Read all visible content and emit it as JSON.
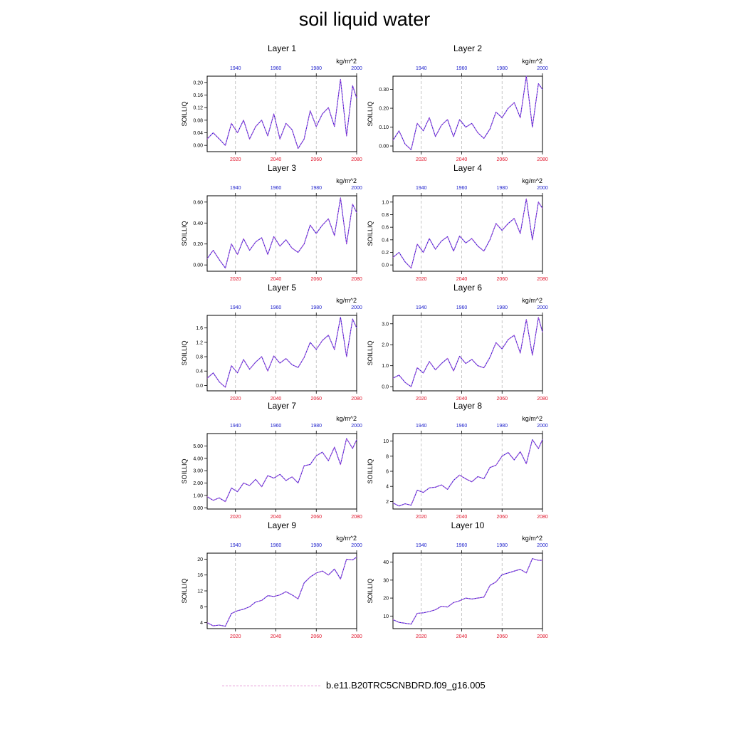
{
  "title": "soil liquid water",
  "legend": {
    "label": "b.e11.B20TRC5CNBDRD.f09_g16.005",
    "color": "#e79ad7"
  },
  "colors": {
    "series": "#3a1ed6",
    "series_overlay": "#e86ad0",
    "top_axis": "#1f22cc",
    "bottom_axis": "#e0142a",
    "grid": "#b8b8b8"
  },
  "chart_data": [
    {
      "type": "line",
      "title": "Layer 1",
      "ylabel": "SOILLIQ",
      "units": "kg/m^2",
      "ylim": [
        -0.02,
        0.22
      ],
      "yticks": [
        "0.00",
        "0.04",
        "0.08",
        "0.12",
        "0.16",
        "0.20"
      ],
      "x_bottom_range": [
        2006,
        2080
      ],
      "x_bottom_ticks": [
        "2020",
        "2040",
        "2060",
        "2080"
      ],
      "x_top_ticks": [
        "1940",
        "1960",
        "1980",
        "2000"
      ],
      "x": [
        2006,
        2009,
        2012,
        2015,
        2018,
        2021,
        2024,
        2027,
        2030,
        2033,
        2036,
        2039,
        2042,
        2045,
        2048,
        2051,
        2054,
        2057,
        2060,
        2063,
        2066,
        2069,
        2072,
        2075,
        2078,
        2080
      ],
      "y": [
        0.02,
        0.04,
        0.02,
        0.0,
        0.07,
        0.04,
        0.08,
        0.02,
        0.06,
        0.08,
        0.03,
        0.1,
        0.02,
        0.07,
        0.05,
        -0.01,
        0.02,
        0.11,
        0.06,
        0.1,
        0.12,
        0.06,
        0.21,
        0.03,
        0.19,
        0.15
      ]
    },
    {
      "type": "line",
      "title": "Layer 2",
      "ylabel": "SOILLIQ",
      "units": "kg/m^2",
      "ylim": [
        -0.03,
        0.37
      ],
      "yticks": [
        "0.00",
        "0.10",
        "0.20",
        "0.30"
      ],
      "x_bottom_range": [
        2006,
        2080
      ],
      "x_bottom_ticks": [
        "2020",
        "2040",
        "2060",
        "2080"
      ],
      "x_top_ticks": [
        "1940",
        "1960",
        "1980",
        "2000"
      ],
      "x": [
        2006,
        2009,
        2012,
        2015,
        2018,
        2021,
        2024,
        2027,
        2030,
        2033,
        2036,
        2039,
        2042,
        2045,
        2048,
        2051,
        2054,
        2057,
        2060,
        2063,
        2066,
        2069,
        2072,
        2075,
        2078,
        2080
      ],
      "y": [
        0.03,
        0.08,
        0.01,
        -0.02,
        0.12,
        0.08,
        0.15,
        0.05,
        0.11,
        0.14,
        0.05,
        0.14,
        0.1,
        0.12,
        0.07,
        0.04,
        0.09,
        0.18,
        0.15,
        0.2,
        0.23,
        0.15,
        0.37,
        0.1,
        0.33,
        0.3
      ]
    },
    {
      "type": "line",
      "title": "Layer 3",
      "ylabel": "SOILLIQ",
      "units": "kg/m^2",
      "ylim": [
        -0.06,
        0.66
      ],
      "yticks": [
        "0.00",
        "0.20",
        "0.40",
        "0.60"
      ],
      "x_bottom_range": [
        2006,
        2080
      ],
      "x_bottom_ticks": [
        "2020",
        "2040",
        "2060",
        "2080"
      ],
      "x_top_ticks": [
        "1940",
        "1960",
        "1980",
        "2000"
      ],
      "x": [
        2006,
        2009,
        2012,
        2015,
        2018,
        2021,
        2024,
        2027,
        2030,
        2033,
        2036,
        2039,
        2042,
        2045,
        2048,
        2051,
        2054,
        2057,
        2060,
        2063,
        2066,
        2069,
        2072,
        2075,
        2078,
        2080
      ],
      "y": [
        0.06,
        0.14,
        0.05,
        -0.03,
        0.2,
        0.1,
        0.25,
        0.14,
        0.22,
        0.26,
        0.1,
        0.27,
        0.18,
        0.24,
        0.16,
        0.12,
        0.2,
        0.38,
        0.3,
        0.38,
        0.44,
        0.28,
        0.64,
        0.2,
        0.58,
        0.5
      ]
    },
    {
      "type": "line",
      "title": "Layer 4",
      "ylabel": "SOILLIQ",
      "units": "kg/m^2",
      "ylim": [
        -0.1,
        1.1
      ],
      "yticks": [
        "0.0",
        "0.2",
        "0.4",
        "0.6",
        "0.8",
        "1.0"
      ],
      "x_bottom_range": [
        2006,
        2080
      ],
      "x_bottom_ticks": [
        "2020",
        "2040",
        "2060",
        "2080"
      ],
      "x_top_ticks": [
        "1940",
        "1960",
        "1980",
        "2000"
      ],
      "x": [
        2006,
        2009,
        2012,
        2015,
        2018,
        2021,
        2024,
        2027,
        2030,
        2033,
        2036,
        2039,
        2042,
        2045,
        2048,
        2051,
        2054,
        2057,
        2060,
        2063,
        2066,
        2069,
        2072,
        2075,
        2078,
        2080
      ],
      "y": [
        0.12,
        0.2,
        0.05,
        -0.05,
        0.33,
        0.2,
        0.42,
        0.25,
        0.38,
        0.45,
        0.22,
        0.46,
        0.35,
        0.42,
        0.3,
        0.22,
        0.4,
        0.66,
        0.55,
        0.66,
        0.74,
        0.5,
        1.05,
        0.4,
        1.0,
        0.9
      ]
    },
    {
      "type": "line",
      "title": "Layer 5",
      "ylabel": "SOILLIQ",
      "units": "kg/m^2",
      "ylim": [
        -0.15,
        1.95
      ],
      "yticks": [
        "0.0",
        "0.4",
        "0.8",
        "1.2",
        "1.6"
      ],
      "x_bottom_range": [
        2006,
        2080
      ],
      "x_bottom_ticks": [
        "2020",
        "2040",
        "2060",
        "2080"
      ],
      "x_top_ticks": [
        "1940",
        "1960",
        "1980",
        "2000"
      ],
      "x": [
        2006,
        2009,
        2012,
        2015,
        2018,
        2021,
        2024,
        2027,
        2030,
        2033,
        2036,
        2039,
        2042,
        2045,
        2048,
        2051,
        2054,
        2057,
        2060,
        2063,
        2066,
        2069,
        2072,
        2075,
        2078,
        2080
      ],
      "y": [
        0.2,
        0.35,
        0.1,
        -0.05,
        0.55,
        0.35,
        0.72,
        0.45,
        0.65,
        0.8,
        0.4,
        0.82,
        0.62,
        0.75,
        0.58,
        0.5,
        0.78,
        1.2,
        1.0,
        1.25,
        1.4,
        1.0,
        1.9,
        0.8,
        1.85,
        1.6
      ]
    },
    {
      "type": "line",
      "title": "Layer 6",
      "ylabel": "SOILLIQ",
      "units": "kg/m^2",
      "ylim": [
        -0.2,
        3.4
      ],
      "yticks": [
        "0.0",
        "1.0",
        "2.0",
        "3.0"
      ],
      "x_bottom_range": [
        2006,
        2080
      ],
      "x_bottom_ticks": [
        "2020",
        "2040",
        "2060",
        "2080"
      ],
      "x_top_ticks": [
        "1940",
        "1960",
        "1980",
        "2000"
      ],
      "x": [
        2006,
        2009,
        2012,
        2015,
        2018,
        2021,
        2024,
        2027,
        2030,
        2033,
        2036,
        2039,
        2042,
        2045,
        2048,
        2051,
        2054,
        2057,
        2060,
        2063,
        2066,
        2069,
        2072,
        2075,
        2078,
        2080
      ],
      "y": [
        0.4,
        0.55,
        0.2,
        0.0,
        0.9,
        0.65,
        1.2,
        0.8,
        1.1,
        1.35,
        0.75,
        1.45,
        1.1,
        1.3,
        1.0,
        0.9,
        1.4,
        2.1,
        1.8,
        2.25,
        2.45,
        1.6,
        3.2,
        1.5,
        3.3,
        2.6
      ]
    },
    {
      "type": "line",
      "title": "Layer 7",
      "ylabel": "SOILLIQ",
      "units": "kg/m^2",
      "ylim": [
        -0.1,
        6.0
      ],
      "yticks": [
        "0.00",
        "1.00",
        "2.00",
        "3.00",
        "4.00",
        "5.00"
      ],
      "x_bottom_range": [
        2006,
        2080
      ],
      "x_bottom_ticks": [
        "2020",
        "2040",
        "2060",
        "2080"
      ],
      "x_top_ticks": [
        "1940",
        "1960",
        "1980",
        "2000"
      ],
      "x": [
        2006,
        2009,
        2012,
        2015,
        2018,
        2021,
        2024,
        2027,
        2030,
        2033,
        2036,
        2039,
        2042,
        2045,
        2048,
        2051,
        2054,
        2057,
        2060,
        2063,
        2066,
        2069,
        2072,
        2075,
        2078,
        2080
      ],
      "y": [
        0.9,
        0.6,
        0.8,
        0.5,
        1.6,
        1.3,
        2.0,
        1.8,
        2.3,
        1.7,
        2.6,
        2.4,
        2.7,
        2.2,
        2.5,
        2.0,
        3.4,
        3.5,
        4.2,
        4.5,
        3.8,
        4.9,
        3.5,
        5.6,
        4.8,
        5.5
      ]
    },
    {
      "type": "line",
      "title": "Layer 8",
      "ylabel": "SOILLIQ",
      "units": "kg/m^2",
      "ylim": [
        1.0,
        11.0
      ],
      "yticks": [
        "2",
        "4",
        "6",
        "8",
        "10"
      ],
      "x_bottom_range": [
        2006,
        2080
      ],
      "x_bottom_ticks": [
        "2020",
        "2040",
        "2060",
        "2080"
      ],
      "x_top_ticks": [
        "1940",
        "1960",
        "1980",
        "2000"
      ],
      "x": [
        2006,
        2009,
        2012,
        2015,
        2018,
        2021,
        2024,
        2027,
        2030,
        2033,
        2036,
        2039,
        2042,
        2045,
        2048,
        2051,
        2054,
        2057,
        2060,
        2063,
        2066,
        2069,
        2072,
        2075,
        2078,
        2080
      ],
      "y": [
        1.8,
        1.4,
        1.7,
        1.5,
        3.5,
        3.2,
        3.8,
        3.9,
        4.2,
        3.6,
        4.8,
        5.5,
        5.0,
        4.6,
        5.3,
        5.0,
        6.5,
        6.8,
        8.0,
        8.5,
        7.5,
        8.6,
        7.0,
        10.2,
        9.0,
        10.2
      ]
    },
    {
      "type": "line",
      "title": "Layer 9",
      "ylabel": "SOILLIQ",
      "units": "kg/m^2",
      "ylim": [
        2.5,
        21.5
      ],
      "yticks": [
        "4",
        "8",
        "12",
        "16",
        "20"
      ],
      "x_bottom_range": [
        2006,
        2080
      ],
      "x_bottom_ticks": [
        "2020",
        "2040",
        "2060",
        "2080"
      ],
      "x_top_ticks": [
        "1940",
        "1960",
        "1980",
        "2000"
      ],
      "x": [
        2006,
        2009,
        2012,
        2015,
        2018,
        2021,
        2024,
        2027,
        2030,
        2033,
        2036,
        2039,
        2042,
        2045,
        2048,
        2051,
        2054,
        2057,
        2060,
        2063,
        2066,
        2069,
        2072,
        2075,
        2078,
        2080
      ],
      "y": [
        4.0,
        3.2,
        3.4,
        3.1,
        6.3,
        7.0,
        7.4,
        8.0,
        9.2,
        9.6,
        10.8,
        10.6,
        11.0,
        11.8,
        11.0,
        10.0,
        14.0,
        15.5,
        16.5,
        17.0,
        16.0,
        17.5,
        15.0,
        20.0,
        19.8,
        20.5
      ]
    },
    {
      "type": "line",
      "title": "Layer 10",
      "ylabel": "SOILLIQ",
      "units": "kg/m^2",
      "ylim": [
        3.0,
        45.0
      ],
      "yticks": [
        "10",
        "20",
        "30",
        "40"
      ],
      "x_bottom_range": [
        2006,
        2080
      ],
      "x_bottom_ticks": [
        "2020",
        "2040",
        "2060",
        "2080"
      ],
      "x_top_ticks": [
        "1940",
        "1960",
        "1980",
        "2000"
      ],
      "x": [
        2006,
        2009,
        2012,
        2015,
        2018,
        2021,
        2024,
        2027,
        2030,
        2033,
        2036,
        2039,
        2042,
        2045,
        2048,
        2051,
        2054,
        2057,
        2060,
        2063,
        2066,
        2069,
        2072,
        2075,
        2078,
        2080
      ],
      "y": [
        8.0,
        6.5,
        6.0,
        5.5,
        11.5,
        11.8,
        12.5,
        13.5,
        15.5,
        15.0,
        17.5,
        18.5,
        20.0,
        19.5,
        20.0,
        20.5,
        27.0,
        29.0,
        33.0,
        34.0,
        35.0,
        36.0,
        34.0,
        42.0,
        41.0,
        41.0
      ]
    }
  ]
}
